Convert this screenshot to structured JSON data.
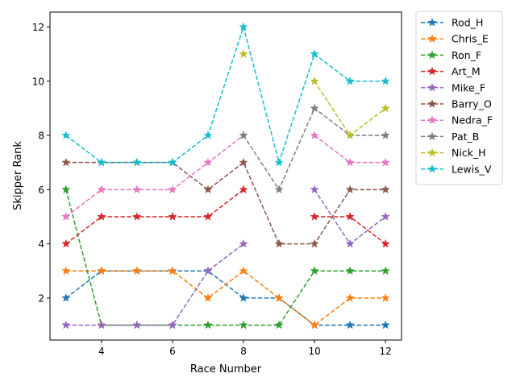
{
  "chart_data": {
    "type": "line",
    "title": "",
    "xlabel": "Race Number",
    "ylabel": "Skipper Rank",
    "xlim": [
      2.55,
      12.45
    ],
    "ylim": [
      0.45,
      12.55
    ],
    "xticks": [
      4,
      6,
      8,
      10,
      12
    ],
    "yticks": [
      2,
      4,
      6,
      8,
      10,
      12
    ],
    "grid": false,
    "legend_position": "outside-right-top",
    "line_style": "dashed",
    "marker": "star",
    "x": [
      3,
      4,
      5,
      6,
      7,
      8,
      9,
      10,
      11,
      12
    ],
    "series": [
      {
        "name": "Rod_H",
        "color": "#1f77b4",
        "values": [
          2,
          3,
          3,
          3,
          3,
          2,
          2,
          1,
          1,
          1
        ]
      },
      {
        "name": "Chris_E",
        "color": "#ff7f0e",
        "values": [
          3,
          3,
          3,
          3,
          2,
          3,
          2,
          1,
          2,
          2
        ]
      },
      {
        "name": "Ron_F",
        "color": "#2ca02c",
        "values": [
          6,
          1,
          1,
          1,
          1,
          1,
          1,
          3,
          3,
          3
        ]
      },
      {
        "name": "Art_M",
        "color": "#d62728",
        "values": [
          4,
          5,
          5,
          5,
          5,
          6,
          null,
          5,
          5,
          4
        ]
      },
      {
        "name": "Mike_F",
        "color": "#9467bd",
        "values": [
          1,
          1,
          1,
          1,
          3,
          4,
          null,
          6,
          4,
          5
        ]
      },
      {
        "name": "Barry_O",
        "color": "#8c564b",
        "values": [
          7,
          7,
          7,
          7,
          6,
          7,
          4,
          4,
          6,
          6
        ]
      },
      {
        "name": "Nedra_F",
        "color": "#e377c2",
        "values": [
          5,
          6,
          6,
          6,
          7,
          8,
          null,
          8,
          7,
          7
        ]
      },
      {
        "name": "Pat_B",
        "color": "#7f7f7f",
        "values": [
          null,
          null,
          null,
          null,
          null,
          8,
          6,
          9,
          8,
          8
        ]
      },
      {
        "name": "Nick_H",
        "color": "#bcbd22",
        "values": [
          null,
          null,
          null,
          null,
          null,
          11,
          null,
          10,
          8,
          9
        ]
      },
      {
        "name": "Lewis_V",
        "color": "#17becf",
        "values": [
          8,
          7,
          7,
          7,
          8,
          12,
          7,
          11,
          10,
          10
        ]
      }
    ]
  }
}
